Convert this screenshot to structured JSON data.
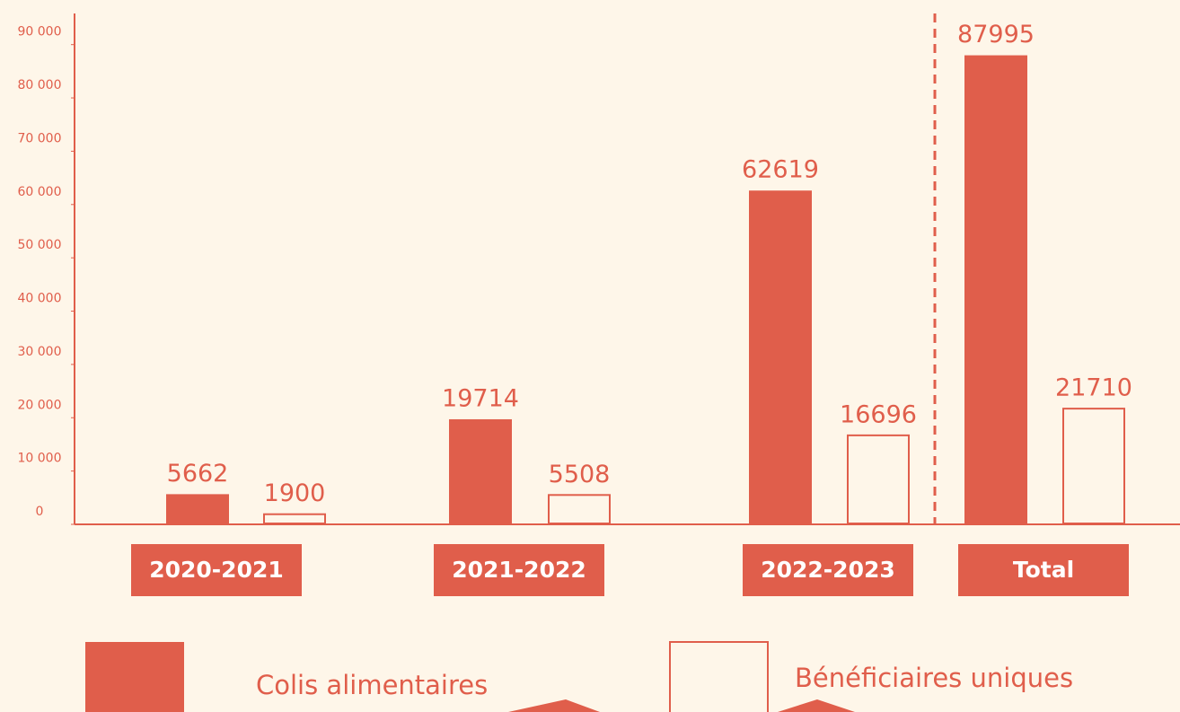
{
  "chart_data": {
    "type": "bar",
    "categories": [
      "2020-2021",
      "2021-2022",
      "2022-2023",
      "Total"
    ],
    "series": [
      {
        "name": "Colis alimentaires",
        "color": "#e05e4b",
        "values": [
          5662,
          19714,
          62619,
          87995
        ]
      },
      {
        "name": "Bénéficiaires uniques",
        "color": "#e05e4b",
        "values": [
          1900,
          5508,
          16696,
          21710
        ]
      }
    ],
    "ylim": [
      0,
      95000
    ],
    "yticks": [
      0,
      {
        "value": 10000,
        "label": "10 000"
      },
      {
        "value": 20000,
        "label": "20 000"
      },
      {
        "value": 30000,
        "label": "30 000"
      },
      {
        "value": 40000,
        "label": "40 000"
      },
      {
        "value": 50000,
        "label": "50 000"
      },
      {
        "value": 60000,
        "label": "60 000"
      },
      {
        "value": 70000,
        "label": "70 000"
      },
      {
        "value": 80000,
        "label": "80 000"
      },
      {
        "value": 90000,
        "label": "90 000"
      }
    ],
    "legend": "bottom"
  }
}
